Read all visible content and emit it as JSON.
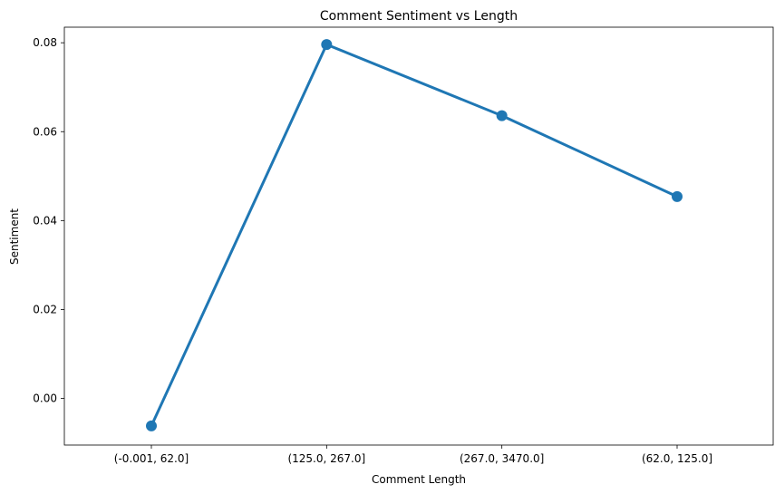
{
  "chart_data": {
    "type": "line",
    "title": "Comment Sentiment vs Length",
    "xlabel": "Comment Length",
    "ylabel": "Sentiment",
    "categories": [
      "(-0.001, 62.0]",
      "(125.0, 267.0]",
      "(267.0, 3470.0]",
      "(62.0, 125.0]"
    ],
    "series": [
      {
        "values": [
          -0.0062,
          0.0796,
          0.0636,
          0.0454
        ],
        "color": "#1f77b4"
      }
    ],
    "ylim": [
      -0.0105,
      0.0835
    ],
    "yticks": [
      0.0,
      0.02,
      0.04,
      0.06,
      0.08
    ],
    "ytick_labels": [
      "0.00",
      "0.02",
      "0.04",
      "0.06",
      "0.08"
    ],
    "grid": false,
    "legend": "none"
  }
}
